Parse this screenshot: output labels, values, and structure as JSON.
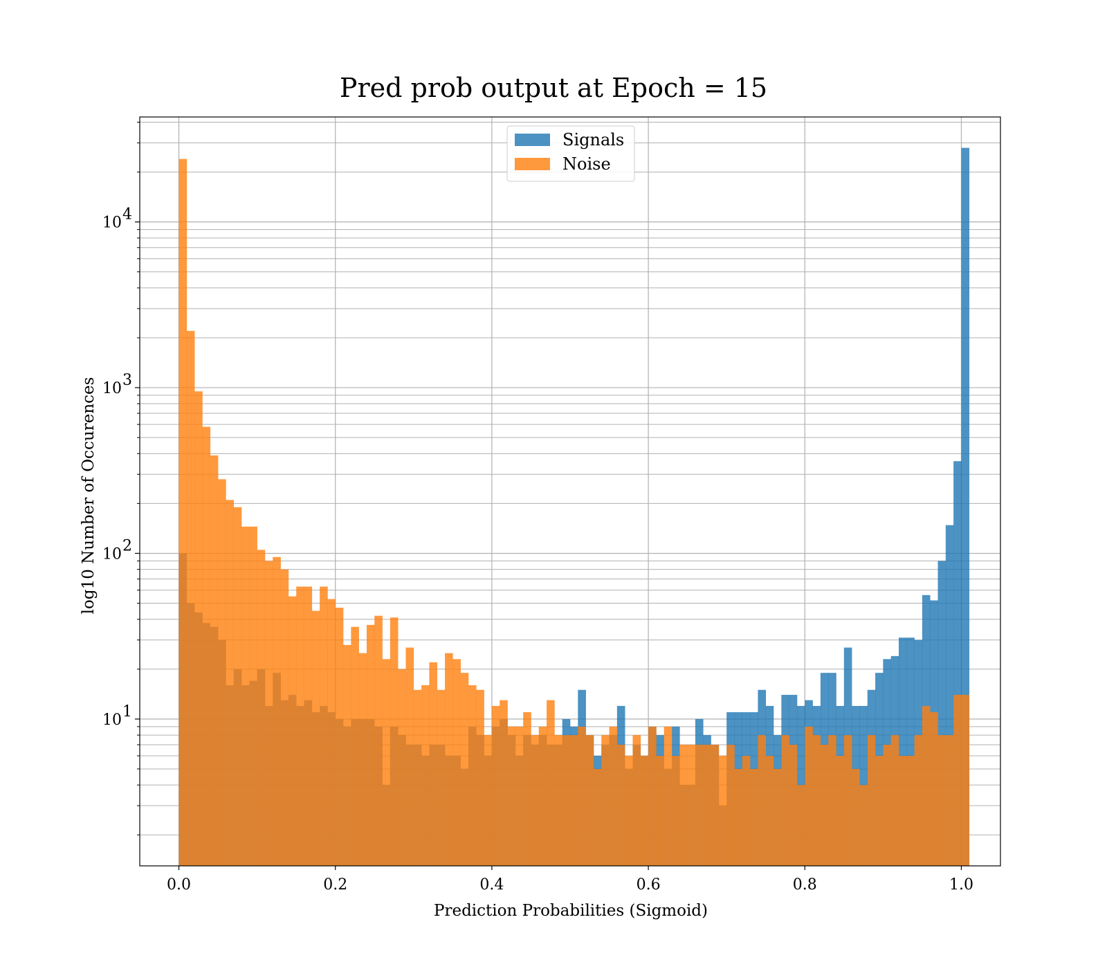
{
  "chart_data": {
    "type": "bar",
    "title": "Pred prob output at Epoch = 15",
    "xlabel": "Prediction Probabilities (Sigmoid)",
    "ylabel": "log10 Number of Occurences",
    "xlim": [
      -0.05,
      1.05
    ],
    "ylim": [
      1.3,
      43000
    ],
    "yscale": "log",
    "grid": true,
    "legend_placement": "upper center",
    "bin_width": 0.01,
    "x_ticks": [
      {
        "value": 0.0,
        "label": "0.0"
      },
      {
        "value": 0.2,
        "label": "0.2"
      },
      {
        "value": 0.4,
        "label": "0.4"
      },
      {
        "value": 0.6,
        "label": "0.6"
      },
      {
        "value": 0.8,
        "label": "0.8"
      },
      {
        "value": 1.0,
        "label": "1.0"
      }
    ],
    "y_ticks": [
      {
        "value": 10,
        "base": "10",
        "exp": "1"
      },
      {
        "value": 100,
        "base": "10",
        "exp": "2"
      },
      {
        "value": 1000,
        "base": "10",
        "exp": "3"
      },
      {
        "value": 10000,
        "base": "10",
        "exp": "4"
      }
    ],
    "series": [
      {
        "name": "Signals",
        "color": "#1f77b4",
        "values": [
          100,
          50,
          44,
          38,
          36,
          30,
          16,
          20,
          16,
          17,
          20,
          12,
          19,
          13,
          14,
          12,
          13,
          11,
          12,
          11,
          10,
          9,
          10,
          10,
          10,
          9,
          4,
          9,
          8,
          7,
          7,
          6,
          7,
          7,
          6,
          6,
          5,
          9,
          8,
          6,
          9,
          10,
          8,
          6,
          8,
          7,
          8,
          7,
          7,
          10,
          9,
          15,
          8,
          6,
          7,
          8,
          12,
          5,
          7,
          6,
          9,
          8,
          5,
          9,
          4,
          4,
          10,
          8,
          7,
          3,
          11,
          11,
          11,
          11,
          15,
          12,
          8,
          14,
          14,
          12,
          13,
          12,
          19,
          19,
          12,
          27,
          12,
          12,
          15,
          19,
          23,
          24,
          31,
          31,
          30,
          56,
          52,
          90,
          148,
          360,
          28000
        ]
      },
      {
        "name": "Noise",
        "color": "#ff7f0e",
        "values": [
          24000,
          2200,
          950,
          580,
          390,
          280,
          210,
          190,
          145,
          145,
          105,
          90,
          95,
          80,
          55,
          63,
          63,
          45,
          63,
          53,
          47,
          28,
          36,
          25,
          37,
          42,
          23,
          41,
          20,
          27,
          15,
          16,
          22,
          15,
          25,
          23,
          19,
          16,
          15,
          8,
          12,
          13,
          9,
          9,
          11,
          8,
          9,
          13,
          8,
          8,
          8,
          9,
          8,
          5,
          8,
          9,
          7,
          6,
          8,
          6,
          9,
          6,
          9,
          6,
          7,
          7,
          7,
          7,
          7,
          6,
          7,
          5,
          6,
          5,
          8,
          6,
          5,
          8,
          7,
          4,
          9,
          8,
          7,
          8,
          6,
          8,
          5,
          4,
          8,
          6,
          7,
          8,
          6,
          6,
          8,
          12,
          11,
          8,
          8,
          14,
          14
        ]
      }
    ]
  }
}
